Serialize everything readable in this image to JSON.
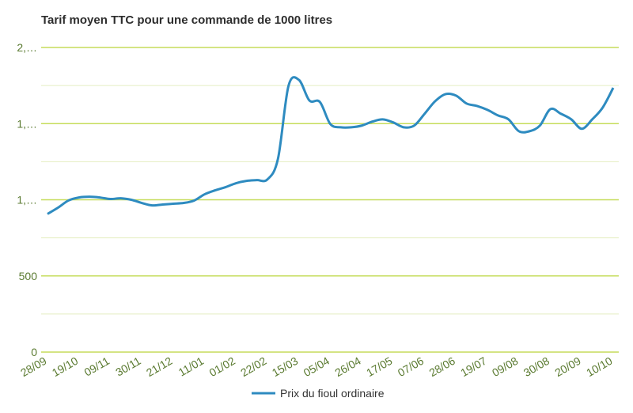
{
  "chart_data": {
    "type": "line",
    "title": "Tarif moyen TTC pour une commande de 1000 litres",
    "categories": [
      "28/09",
      null,
      null,
      "19/10",
      null,
      null,
      "09/11",
      null,
      null,
      "30/11",
      null,
      null,
      "21/12",
      null,
      null,
      "11/01",
      null,
      null,
      "01/02",
      null,
      null,
      "22/02",
      null,
      null,
      "15/03",
      null,
      null,
      "05/04",
      null,
      null,
      "26/04",
      null,
      null,
      "17/05",
      null,
      null,
      "07/06",
      null,
      null,
      "28/06",
      null,
      null,
      "19/07",
      null,
      null,
      "09/08",
      null,
      null,
      "30/08",
      null,
      null,
      "20/09",
      null,
      null,
      "10/10"
    ],
    "series": [
      {
        "name": "Prix du fioul ordinaire",
        "color": "#2e8bc0",
        "values": [
          907,
          948,
          995,
          1015,
          1020,
          1015,
          1005,
          1010,
          1000,
          979,
          963,
          969,
          974,
          979,
          995,
          1036,
          1062,
          1083,
          1109,
          1124,
          1129,
          1134,
          1269,
          1746,
          1787,
          1652,
          1642,
          1497,
          1476,
          1476,
          1487,
          1513,
          1528,
          1508,
          1476,
          1487,
          1565,
          1647,
          1694,
          1684,
          1632,
          1616,
          1590,
          1554,
          1528,
          1450,
          1450,
          1487,
          1595,
          1565,
          1528,
          1466,
          1528,
          1606,
          1735
        ]
      }
    ],
    "ylim": [
      0,
      2000
    ],
    "yticks": [
      0,
      500,
      {
        "value": 1000,
        "label": "1,…"
      },
      {
        "value": 1500,
        "label": "1,…"
      },
      {
        "value": 2000,
        "label": "2,…"
      }
    ],
    "minor_yticks": [
      250,
      750,
      1250,
      1750
    ],
    "grid": true,
    "legend": "bottom"
  }
}
